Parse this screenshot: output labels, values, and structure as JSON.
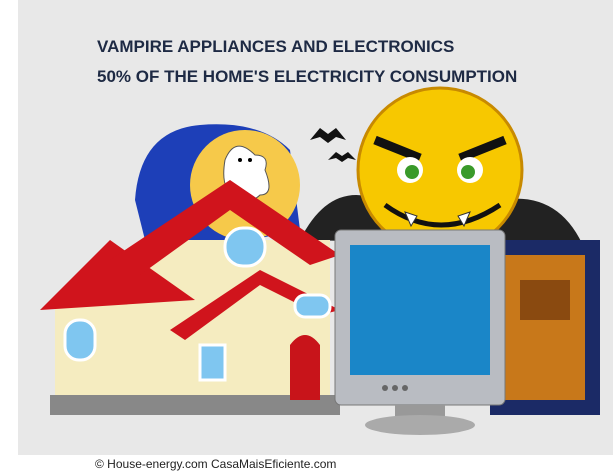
{
  "header": {
    "title_lines": [
      "VAMPIRE APPLIANCES AND ELECTRONICS",
      "50% OF THE HOME'S ELECTRICITY CONSUMPTION"
    ]
  },
  "footer": {
    "credit": "© House-energy.com CasaMaisEficiente.com"
  }
}
